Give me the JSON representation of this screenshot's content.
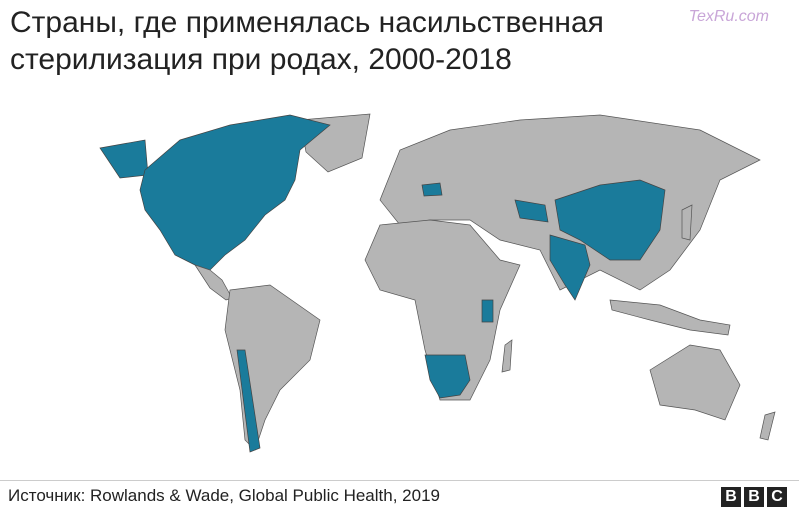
{
  "header": {
    "title": "Страны, где применялась насильственная стерилизация при родах, 2000-2018"
  },
  "watermark": "TexRu.com",
  "footer": {
    "source": "Источник: Rowlands & Wade, Global Public Health, 2019",
    "logo": [
      "B",
      "B",
      "C"
    ]
  }
}
